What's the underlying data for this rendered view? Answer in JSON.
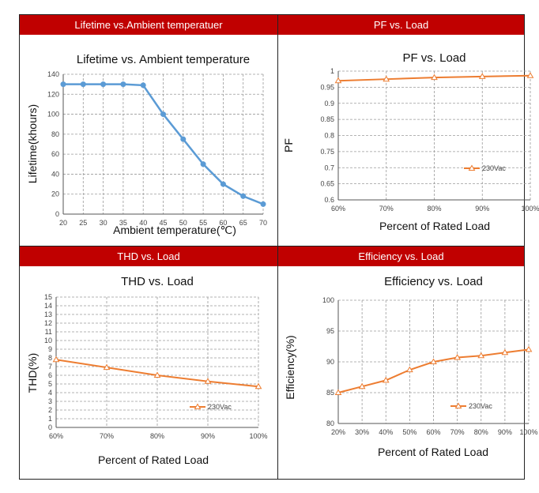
{
  "panels": [
    {
      "header": "Lifetime vs.Ambient temperatuer",
      "chart_data": {
        "type": "line",
        "title": "Lifetime vs. Ambient temperature",
        "xlabel": "Ambient temperature(℃)",
        "ylabel": "Lifetime(khours)",
        "x_ticks": [
          "20",
          "25",
          "30",
          "35",
          "40",
          "45",
          "50",
          "55",
          "60",
          "65",
          "70"
        ],
        "y_ticks": [
          "0",
          "20",
          "40",
          "60",
          "80",
          "100",
          "120",
          "140"
        ],
        "x": [
          20,
          25,
          30,
          35,
          40,
          45,
          50,
          55,
          60,
          65,
          70
        ],
        "series": [
          {
            "values": [
              130,
              130,
              130,
              130,
              129,
              100,
              75,
              50,
              30,
              18,
              10
            ],
            "color": "#5b9bd5"
          }
        ],
        "xlim": [
          20,
          70
        ],
        "ylim": [
          0,
          140
        ],
        "grid": true
      }
    },
    {
      "header": "PF vs. Load",
      "chart_data": {
        "type": "line",
        "title": "PF vs. Load",
        "xlabel": "Percent of Rated Load",
        "ylabel": "PF",
        "x_ticks": [
          "60%",
          "70%",
          "80%",
          "90%",
          "100%"
        ],
        "y_ticks": [
          "0.6",
          "0.65",
          "0.7",
          "0.75",
          "0.8",
          "0.85",
          "0.9",
          "0.95",
          "1"
        ],
        "x": [
          60,
          70,
          80,
          90,
          100
        ],
        "series": [
          {
            "name": "230Vac",
            "values": [
              0.97,
              0.975,
              0.98,
              0.983,
              0.986
            ],
            "color": "#ed7d31"
          }
        ],
        "xlim": [
          60,
          100
        ],
        "ylim": [
          0.6,
          1
        ],
        "grid": true,
        "legend": "right"
      }
    },
    {
      "header": "THD vs. Load",
      "chart_data": {
        "type": "line",
        "title": "THD vs. Load",
        "xlabel": "Percent of Rated Load",
        "ylabel": "THD(%)",
        "x_ticks": [
          "60%",
          "70%",
          "80%",
          "90%",
          "100%"
        ],
        "y_ticks": [
          "0",
          "1",
          "2",
          "3",
          "4",
          "5",
          "6",
          "7",
          "8",
          "9",
          "10",
          "11",
          "12",
          "13",
          "14",
          "15"
        ],
        "x": [
          60,
          70,
          80,
          90,
          100
        ],
        "series": [
          {
            "name": "230Vac",
            "values": [
              7.8,
              6.9,
              6.0,
              5.3,
              4.7
            ],
            "color": "#ed7d31"
          }
        ],
        "xlim": [
          60,
          100
        ],
        "ylim": [
          0,
          15
        ],
        "grid": true,
        "legend": "right"
      }
    },
    {
      "header": "Efficiency vs. Load",
      "chart_data": {
        "type": "line",
        "title": "Efficiency vs. Load",
        "xlabel": "Percent of Rated Load",
        "ylabel": "Efficiency(%)",
        "x_ticks": [
          "20%",
          "30%",
          "40%",
          "50%",
          "60%",
          "70%",
          "80%",
          "90%",
          "100%"
        ],
        "y_ticks": [
          "80",
          "85",
          "90",
          "95",
          "100"
        ],
        "x": [
          20,
          30,
          40,
          50,
          60,
          70,
          80,
          90,
          100
        ],
        "series": [
          {
            "name": "230Vac",
            "values": [
              85,
              86,
              87,
              88.7,
              90,
              90.7,
              91,
              91.5,
              92
            ],
            "color": "#ed7d31"
          }
        ],
        "xlim": [
          20,
          100
        ],
        "ylim": [
          80,
          100
        ],
        "grid": true,
        "legend": "right"
      }
    }
  ]
}
